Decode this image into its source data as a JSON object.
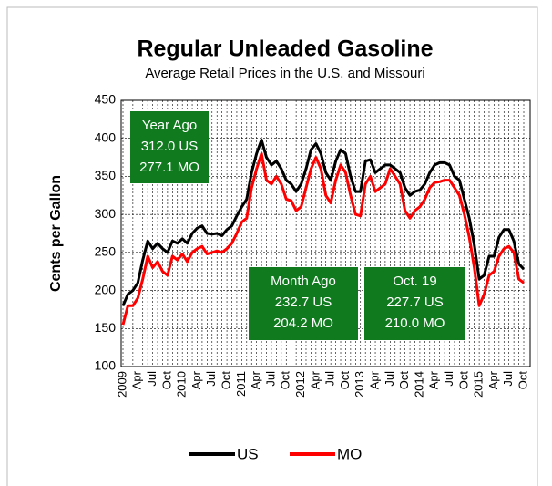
{
  "chart_data": {
    "type": "line",
    "title": "Regular Unleaded Gasoline",
    "subtitle": "Average Retail Prices in the U.S. and Missouri",
    "y_label": "Cents per Gallon",
    "categories": [
      "2009",
      null,
      null,
      "Apr",
      null,
      null,
      "Jul",
      null,
      null,
      "Oct",
      null,
      null,
      "2010",
      null,
      null,
      "Apr",
      null,
      null,
      "Jul",
      null,
      null,
      "Oct",
      null,
      null,
      "2011",
      null,
      null,
      "Apr",
      null,
      null,
      "Jul",
      null,
      null,
      "Oct",
      null,
      null,
      "2012",
      null,
      null,
      "Apr",
      null,
      null,
      "Jul",
      null,
      null,
      "Oct",
      null,
      null,
      "2013",
      null,
      null,
      "Apr",
      null,
      null,
      "Jul",
      null,
      null,
      "Oct",
      null,
      null,
      "2014",
      null,
      null,
      "Apr",
      null,
      null,
      "Jul",
      null,
      null,
      "Oct",
      null,
      null,
      "2015",
      null,
      null,
      "Apr",
      null,
      null,
      "Jul",
      null,
      null,
      "Oct"
    ],
    "series": [
      {
        "name": "US",
        "color": "#000000",
        "values": [
          180,
          195,
          200,
          210,
          240,
          265,
          255,
          262,
          255,
          250,
          265,
          262,
          268,
          262,
          275,
          282,
          285,
          275,
          274,
          275,
          272,
          280,
          285,
          298,
          310,
          320,
          355,
          380,
          398,
          375,
          365,
          370,
          360,
          345,
          340,
          330,
          340,
          360,
          385,
          393,
          380,
          355,
          345,
          370,
          385,
          380,
          350,
          330,
          330,
          370,
          372,
          355,
          360,
          365,
          365,
          360,
          355,
          335,
          325,
          330,
          332,
          340,
          355,
          365,
          368,
          368,
          365,
          350,
          345,
          320,
          295,
          260,
          215,
          220,
          245,
          245,
          270,
          280,
          280,
          265,
          235,
          228
        ]
      },
      {
        "name": "MO",
        "color": "#ff0000",
        "values": [
          155,
          180,
          180,
          190,
          215,
          245,
          230,
          238,
          225,
          220,
          245,
          240,
          248,
          238,
          250,
          255,
          258,
          248,
          250,
          252,
          250,
          255,
          262,
          275,
          290,
          295,
          335,
          360,
          380,
          345,
          340,
          350,
          340,
          320,
          318,
          305,
          310,
          335,
          360,
          375,
          360,
          325,
          315,
          345,
          365,
          355,
          325,
          300,
          298,
          340,
          350,
          330,
          335,
          340,
          360,
          350,
          340,
          305,
          295,
          305,
          310,
          320,
          335,
          342,
          343,
          345,
          345,
          335,
          325,
          300,
          270,
          230,
          180,
          195,
          220,
          225,
          245,
          255,
          258,
          250,
          215,
          210
        ]
      }
    ],
    "ylim": [
      100,
      450
    ],
    "yticks": [
      100,
      150,
      200,
      250,
      300,
      350,
      400,
      450
    ],
    "grid": true,
    "legend": "bottom",
    "annotations": [
      {
        "lines": [
          "Year Ago",
          "312.0 US",
          "277.1 MO"
        ],
        "color": "#107a1f"
      },
      {
        "lines": [
          "Month  Ago",
          "232.7 US",
          "204.2 MO"
        ],
        "color": "#107a1f"
      },
      {
        "lines": [
          "Oct. 19",
          "227.7 US",
          "210.0 MO"
        ],
        "color": "#107a1f"
      }
    ]
  }
}
